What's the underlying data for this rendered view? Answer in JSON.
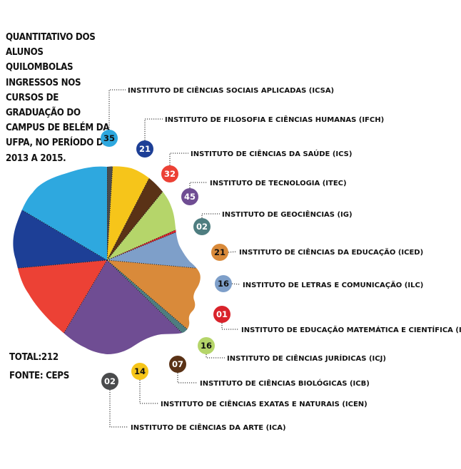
{
  "title": "QUANTITATIVO DOS ALUNOS QUILOMBOLAS INGRESSOS NOS CURSOS DE GRADUAÇÃO DO CAMPUS DE BELÉM DA UFPA, NO PERÍODO DE 2013 A 2015.",
  "total": "TOTAL:212",
  "source": "FONTE: CEPS",
  "chart_data": {
    "type": "pie",
    "title": "QUANTITATIVO DOS ALUNOS QUILOMBOLAS INGRESSOS NOS CURSOS DE GRADUAÇÃO DO CAMPUS DE BELÉM DA UFPA, NO PERÍODO DE 2013 A 2015.",
    "total": 212,
    "slices": [
      {
        "label": "INSTITUTO DE CIÊNCIAS DA ARTE (ICA)",
        "value": 2,
        "value_label": "02",
        "color": "#4a4b4d"
      },
      {
        "label": "INSTITUTO DE CIÊNCIAS EXATAS E NATURAIS (ICEN)",
        "value": 14,
        "value_label": "14",
        "color": "#f6c51a"
      },
      {
        "label": "INSTITUTO DE CIÊNCIAS BIOLÓGICAS (ICB)",
        "value": 7,
        "value_label": "07",
        "color": "#5a3216"
      },
      {
        "label": "INSTITUTO DE CIÊNCIAS JURÍDICAS (ICJ)",
        "value": 16,
        "value_label": "16",
        "color": "#b5d56a"
      },
      {
        "label": "INSTITUTO DE EDUCAÇÃO MATEMÁTICA E CIENTÍFICA (IEMCI)",
        "value": 1,
        "value_label": "01",
        "color": "#d9232b"
      },
      {
        "label": "INSTITUTO DE LETRAS E COMUNICAÇÃO (ILC)",
        "value": 16,
        "value_label": "16",
        "color": "#7e9fc9"
      },
      {
        "label": "INSTITUTO DE CIÊNCIAS DA EDUCAÇÃO (ICED)",
        "value": 21,
        "value_label": "21",
        "color": "#d98a3a"
      },
      {
        "label": "INSTITUTO DE GEOCIÊNCIAS (IG)",
        "value": 2,
        "value_label": "02",
        "color": "#4e7d80"
      },
      {
        "label": "INSTITUTO DE TECNOLOGIA (ITEC)",
        "value": 45,
        "value_label": "45",
        "color": "#6f4d93"
      },
      {
        "label": "INSTITUTO DE CIÊNCIAS DA SAÚDE (ICS)",
        "value": 32,
        "value_label": "32",
        "color": "#ec4135"
      },
      {
        "label": "INSTITUTO DE FILOSOFIA E CIÊNCIAS HUMANAS (IFCH)",
        "value": 21,
        "value_label": "21",
        "color": "#1d3f96"
      },
      {
        "label": "INSTITUTO DE CIÊNCIAS SOCIAIS APLICADAS (ICSA)",
        "value": 35,
        "value_label": "35",
        "color": "#2ea8df"
      }
    ],
    "callouts_top_to_bottom": [
      {
        "label": "INSTITUTO DE CIÊNCIAS SOCIAIS APLICADAS (ICSA)",
        "value_label": "35",
        "color": "#2ea8df",
        "text_color": "#111111"
      },
      {
        "label": "INSTITUTO DE FILOSOFIA E CIÊNCIAS HUMANAS (IFCH)",
        "value_label": "21",
        "color": "#1d3f96",
        "text_color": "#ffffff"
      },
      {
        "label": "INSTITUTO DE CIÊNCIAS DA SAÚDE (ICS)",
        "value_label": "32",
        "color": "#ec4135",
        "text_color": "#ffffff"
      },
      {
        "label": "INSTITUTO DE TECNOLOGIA (ITEC)",
        "value_label": "45",
        "color": "#6f4d93",
        "text_color": "#ffffff"
      },
      {
        "label": "INSTITUTO DE GEOCIÊNCIAS (IG)",
        "value_label": "02",
        "color": "#4e7d80",
        "text_color": "#ffffff"
      },
      {
        "label": "INSTITUTO DE CIÊNCIAS DA EDUCAÇÃO (ICED)",
        "value_label": "21",
        "color": "#d98a3a",
        "text_color": "#111111"
      },
      {
        "label": "INSTITUTO DE LETRAS E COMUNICAÇÃO (ILC)",
        "value_label": "16",
        "color": "#7e9fc9",
        "text_color": "#111111"
      },
      {
        "label": "INSTITUTO DE EDUCAÇÃO MATEMÁTICA E CIENTÍFICA (IEMCI)",
        "value_label": "01",
        "color": "#d9232b",
        "text_color": "#ffffff"
      },
      {
        "label": "INSTITUTO DE CIÊNCIAS JURÍDICAS (ICJ)",
        "value_label": "16",
        "color": "#b5d56a",
        "text_color": "#111111"
      },
      {
        "label": "INSTITUTO DE CIÊNCIAS BIOLÓGICAS (ICB)",
        "value_label": "07",
        "color": "#5a3216",
        "text_color": "#ffffff"
      },
      {
        "label": "INSTITUTO DE CIÊNCIAS EXATAS E NATURAIS (ICEN)",
        "value_label": "14",
        "color": "#f6c51a",
        "text_color": "#111111"
      },
      {
        "label": "INSTITUTO DE CIÊNCIAS DA ARTE (ICA)",
        "value_label": "02",
        "color": "#4a4b4d",
        "text_color": "#ffffff"
      }
    ]
  }
}
